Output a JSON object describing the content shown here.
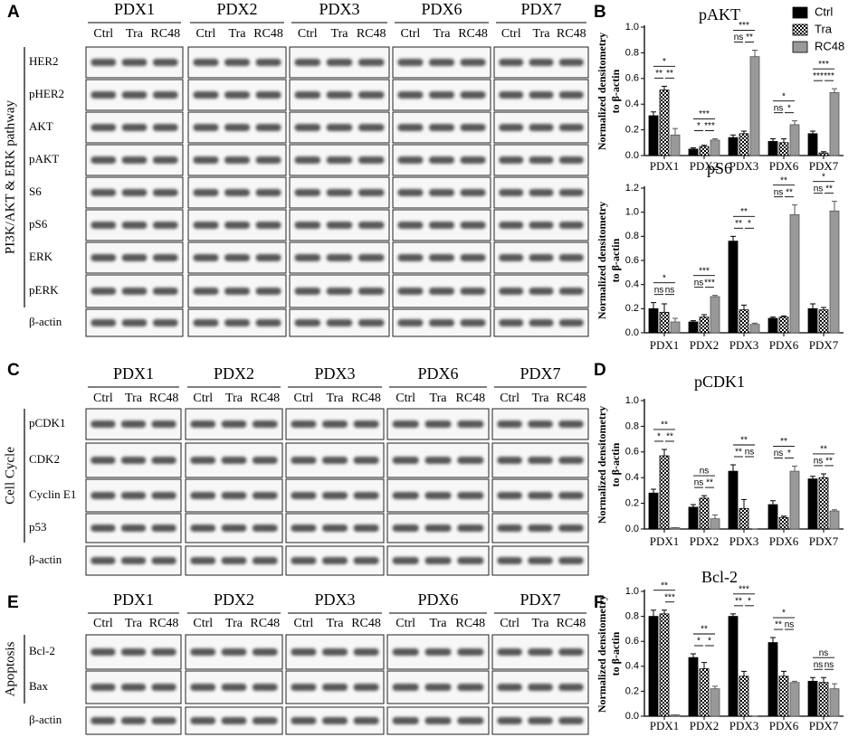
{
  "blots": [
    {
      "panel_label": "A",
      "side_label": "PI3K/AKT & ERK pathway",
      "groups": [
        "PDX1",
        "PDX2",
        "PDX3",
        "PDX6",
        "PDX7"
      ],
      "lanes": [
        "Ctrl",
        "Tra",
        "RC48"
      ],
      "rows": [
        "HER2",
        "pHER2",
        "AKT",
        "pAKT",
        "S6",
        "pS6",
        "ERK",
        "pERK",
        "β-actin"
      ]
    },
    {
      "panel_label": "C",
      "side_label": "Cell Cycle",
      "groups": [
        "PDX1",
        "PDX2",
        "PDX3",
        "PDX6",
        "PDX7"
      ],
      "lanes": [
        "Ctrl",
        "Tra",
        "RC48"
      ],
      "rows": [
        "pCDK1",
        "CDK2",
        "Cyclin E1",
        "p53",
        "β-actin"
      ]
    },
    {
      "panel_label": "E",
      "side_label": "Apoptosis",
      "groups": [
        "PDX1",
        "PDX2",
        "PDX3",
        "PDX6",
        "PDX7"
      ],
      "lanes": [
        "Ctrl",
        "Tra",
        "RC48"
      ],
      "rows": [
        "Bcl-2",
        "Bax",
        "β-actin"
      ]
    }
  ],
  "chart_data": [
    {
      "type": "bar",
      "panel_label": "B",
      "title": "pAKT",
      "ylabel": [
        "Normalized densitometry",
        "to β-actin"
      ],
      "categories": [
        "PDX1",
        "PDX2",
        "PDX3",
        "PDX6",
        "PDX7"
      ],
      "series": [
        {
          "name": "Ctrl",
          "color": "#000000",
          "values": [
            0.31,
            0.05,
            0.14,
            0.11,
            0.17
          ],
          "errors": [
            0.03,
            0.01,
            0.02,
            0.02,
            0.02
          ]
        },
        {
          "name": "Tra",
          "color": "#000000",
          "pattern": "checker",
          "values": [
            0.51,
            0.07,
            0.17,
            0.1,
            0.02
          ],
          "errors": [
            0.03,
            0.01,
            0.02,
            0.03,
            0.01
          ]
        },
        {
          "name": "RC48",
          "color": "#999999",
          "values": [
            0.16,
            0.12,
            0.77,
            0.24,
            0.49
          ],
          "errors": [
            0.05,
            0.01,
            0.05,
            0.03,
            0.03
          ]
        }
      ],
      "ylim": [
        0,
        1.0
      ],
      "yticks": [
        {
          "value": 0,
          "label": "0.0"
        },
        {
          "value": 0.2,
          "label": "0.2"
        },
        {
          "value": 0.4,
          "label": "0.4"
        },
        {
          "value": 0.6,
          "label": "0.6"
        },
        {
          "value": 0.8,
          "label": "0.8"
        },
        {
          "value": 1.0,
          "label": "1.0"
        }
      ],
      "legend": "upper right",
      "annotations": [
        {
          "category": "PDX1",
          "pair": [
            "Ctrl",
            "RC48"
          ],
          "text": "*"
        },
        {
          "category": "PDX1",
          "pair": [
            "Ctrl",
            "Tra"
          ],
          "text": "**"
        },
        {
          "category": "PDX1",
          "pair": [
            "Tra",
            "RC48"
          ],
          "text": "**"
        },
        {
          "category": "PDX2",
          "pair": [
            "Ctrl",
            "RC48"
          ],
          "text": "***"
        },
        {
          "category": "PDX2",
          "pair": [
            "Ctrl",
            "Tra"
          ],
          "text": "*"
        },
        {
          "category": "PDX2",
          "pair": [
            "Tra",
            "RC48"
          ],
          "text": "***"
        },
        {
          "category": "PDX3",
          "pair": [
            "Ctrl",
            "RC48"
          ],
          "text": "***"
        },
        {
          "category": "PDX3",
          "pair": [
            "Ctrl",
            "Tra"
          ],
          "text": "ns"
        },
        {
          "category": "PDX3",
          "pair": [
            "Tra",
            "RC48"
          ],
          "text": "**"
        },
        {
          "category": "PDX6",
          "pair": [
            "Ctrl",
            "RC48"
          ],
          "text": "*"
        },
        {
          "category": "PDX6",
          "pair": [
            "Ctrl",
            "Tra"
          ],
          "text": "ns"
        },
        {
          "category": "PDX6",
          "pair": [
            "Tra",
            "RC48"
          ],
          "text": "*"
        },
        {
          "category": "PDX7",
          "pair": [
            "Ctrl",
            "RC48"
          ],
          "text": "***"
        },
        {
          "category": "PDX7",
          "pair": [
            "Ctrl",
            "Tra"
          ],
          "text": "***"
        },
        {
          "category": "PDX7",
          "pair": [
            "Tra",
            "RC48"
          ],
          "text": "***"
        }
      ]
    },
    {
      "type": "bar",
      "title": "pS6",
      "ylabel": [
        "Normalized densitometry",
        "to β-actin"
      ],
      "categories": [
        "PDX1",
        "PDX2",
        "PDX3",
        "PDX6",
        "PDX7"
      ],
      "series": [
        {
          "name": "Ctrl",
          "color": "#000000",
          "values": [
            0.2,
            0.09,
            0.76,
            0.12,
            0.2
          ],
          "errors": [
            0.05,
            0.01,
            0.04,
            0.01,
            0.04
          ]
        },
        {
          "name": "Tra",
          "color": "#000000",
          "pattern": "checker",
          "values": [
            0.17,
            0.13,
            0.19,
            0.13,
            0.19
          ],
          "errors": [
            0.07,
            0.02,
            0.04,
            0.01,
            0.02
          ]
        },
        {
          "name": "RC48",
          "color": "#999999",
          "values": [
            0.09,
            0.3,
            0.07,
            0.98,
            1.01
          ],
          "errors": [
            0.03,
            0.01,
            0.01,
            0.08,
            0.08
          ]
        }
      ],
      "ylim": [
        0,
        1.2
      ],
      "yticks": [
        {
          "value": 0,
          "label": "0.0"
        },
        {
          "value": 0.2,
          "label": "0.2"
        },
        {
          "value": 0.4,
          "label": "0.4"
        },
        {
          "value": 0.6,
          "label": "0.6"
        },
        {
          "value": 0.8,
          "label": "0.8"
        },
        {
          "value": 1.0,
          "label": "1.0"
        },
        {
          "value": 1.2,
          "label": "1.2"
        }
      ],
      "annotations": [
        {
          "category": "PDX1",
          "pair": [
            "Ctrl",
            "RC48"
          ],
          "text": "*"
        },
        {
          "category": "PDX1",
          "pair": [
            "Ctrl",
            "Tra"
          ],
          "text": "ns"
        },
        {
          "category": "PDX1",
          "pair": [
            "Tra",
            "RC48"
          ],
          "text": "ns"
        },
        {
          "category": "PDX2",
          "pair": [
            "Ctrl",
            "RC48"
          ],
          "text": "***"
        },
        {
          "category": "PDX2",
          "pair": [
            "Ctrl",
            "Tra"
          ],
          "text": "ns"
        },
        {
          "category": "PDX2",
          "pair": [
            "Tra",
            "RC48"
          ],
          "text": "***"
        },
        {
          "category": "PDX3",
          "pair": [
            "Ctrl",
            "RC48"
          ],
          "text": "**"
        },
        {
          "category": "PDX3",
          "pair": [
            "Ctrl",
            "Tra"
          ],
          "text": "**"
        },
        {
          "category": "PDX3",
          "pair": [
            "Tra",
            "RC48"
          ],
          "text": "*"
        },
        {
          "category": "PDX6",
          "pair": [
            "Ctrl",
            "RC48"
          ],
          "text": "**"
        },
        {
          "category": "PDX6",
          "pair": [
            "Ctrl",
            "Tra"
          ],
          "text": "ns"
        },
        {
          "category": "PDX6",
          "pair": [
            "Tra",
            "RC48"
          ],
          "text": "**"
        },
        {
          "category": "PDX7",
          "pair": [
            "Ctrl",
            "RC48"
          ],
          "text": "*"
        },
        {
          "category": "PDX7",
          "pair": [
            "Ctrl",
            "Tra"
          ],
          "text": "ns"
        },
        {
          "category": "PDX7",
          "pair": [
            "Tra",
            "RC48"
          ],
          "text": "**"
        }
      ]
    },
    {
      "type": "bar",
      "panel_label": "D",
      "title": "pCDK1",
      "ylabel": [
        "Normalized densitometry",
        "to β-actin"
      ],
      "categories": [
        "PDX1",
        "PDX2",
        "PDX3",
        "PDX6",
        "PDX7"
      ],
      "series": [
        {
          "name": "Ctrl",
          "color": "#000000",
          "values": [
            0.28,
            0.17,
            0.45,
            0.19,
            0.39
          ],
          "errors": [
            0.03,
            0.02,
            0.05,
            0.03,
            0.02
          ]
        },
        {
          "name": "Tra",
          "color": "#000000",
          "pattern": "checker",
          "values": [
            0.57,
            0.24,
            0.16,
            0.09,
            0.4
          ],
          "errors": [
            0.05,
            0.02,
            0.07,
            0.01,
            0.03
          ]
        },
        {
          "name": "RC48",
          "color": "#999999",
          "values": [
            0.01,
            0.08,
            0.0,
            0.45,
            0.14
          ],
          "errors": [
            0.0,
            0.03,
            0.0,
            0.04,
            0.01
          ]
        }
      ],
      "ylim": [
        0,
        1.0
      ],
      "yticks": [
        {
          "value": 0,
          "label": "0.0"
        },
        {
          "value": 0.2,
          "label": "0.2"
        },
        {
          "value": 0.4,
          "label": "0.4"
        },
        {
          "value": 0.6,
          "label": "0.6"
        },
        {
          "value": 0.8,
          "label": "0.8"
        },
        {
          "value": 1.0,
          "label": "1.0"
        }
      ],
      "annotations": [
        {
          "category": "PDX1",
          "pair": [
            "Ctrl",
            "RC48"
          ],
          "text": "**"
        },
        {
          "category": "PDX1",
          "pair": [
            "Ctrl",
            "Tra"
          ],
          "text": "*"
        },
        {
          "category": "PDX1",
          "pair": [
            "Tra",
            "RC48"
          ],
          "text": "**"
        },
        {
          "category": "PDX2",
          "pair": [
            "Ctrl",
            "RC48"
          ],
          "text": "ns"
        },
        {
          "category": "PDX2",
          "pair": [
            "Ctrl",
            "Tra"
          ],
          "text": "ns"
        },
        {
          "category": "PDX2",
          "pair": [
            "Tra",
            "RC48"
          ],
          "text": "**"
        },
        {
          "category": "PDX3",
          "pair": [
            "Ctrl",
            "RC48"
          ],
          "text": "**"
        },
        {
          "category": "PDX3",
          "pair": [
            "Ctrl",
            "Tra"
          ],
          "text": "**"
        },
        {
          "category": "PDX3",
          "pair": [
            "Tra",
            "RC48"
          ],
          "text": "ns"
        },
        {
          "category": "PDX6",
          "pair": [
            "Ctrl",
            "RC48"
          ],
          "text": "**"
        },
        {
          "category": "PDX6",
          "pair": [
            "Ctrl",
            "Tra"
          ],
          "text": "ns"
        },
        {
          "category": "PDX6",
          "pair": [
            "Tra",
            "RC48"
          ],
          "text": "*"
        },
        {
          "category": "PDX7",
          "pair": [
            "Ctrl",
            "RC48"
          ],
          "text": "**"
        },
        {
          "category": "PDX7",
          "pair": [
            "Ctrl",
            "Tra"
          ],
          "text": "ns"
        },
        {
          "category": "PDX7",
          "pair": [
            "Tra",
            "RC48"
          ],
          "text": "**"
        }
      ]
    },
    {
      "type": "bar",
      "panel_label": "F",
      "title": "Bcl-2",
      "ylabel": [
        "Normalized densitometry",
        "to β-actin"
      ],
      "categories": [
        "PDX1",
        "PDX2",
        "PDX3",
        "PDX6",
        "PDX7"
      ],
      "series": [
        {
          "name": "Ctrl",
          "color": "#000000",
          "values": [
            0.8,
            0.47,
            0.8,
            0.59,
            0.28
          ],
          "errors": [
            0.05,
            0.03,
            0.02,
            0.04,
            0.03
          ]
        },
        {
          "name": "Tra",
          "color": "#000000",
          "pattern": "checker",
          "values": [
            0.82,
            0.38,
            0.32,
            0.32,
            0.27
          ],
          "errors": [
            0.03,
            0.05,
            0.04,
            0.04,
            0.04
          ]
        },
        {
          "name": "RC48",
          "color": "#999999",
          "values": [
            0.01,
            0.22,
            0.0,
            0.27,
            0.22
          ],
          "errors": [
            0.0,
            0.02,
            0.0,
            0.01,
            0.04
          ]
        }
      ],
      "ylim": [
        0,
        1.0
      ],
      "yticks": [
        {
          "value": 0,
          "label": "0.0"
        },
        {
          "value": 0.2,
          "label": "0.2"
        },
        {
          "value": 0.4,
          "label": "0.4"
        },
        {
          "value": 0.6,
          "label": "0.6"
        },
        {
          "value": 0.8,
          "label": "0.8"
        },
        {
          "value": 1.0,
          "label": "1.0"
        }
      ],
      "annotations": [
        {
          "category": "PDX1",
          "pair": [
            "Ctrl",
            "RC48"
          ],
          "text": "**"
        },
        {
          "category": "PDX1",
          "pair": [
            "Tra",
            "RC48"
          ],
          "text": "***"
        },
        {
          "category": "PDX2",
          "pair": [
            "Ctrl",
            "RC48"
          ],
          "text": "**"
        },
        {
          "category": "PDX2",
          "pair": [
            "Ctrl",
            "Tra"
          ],
          "text": "*"
        },
        {
          "category": "PDX2",
          "pair": [
            "Tra",
            "RC48"
          ],
          "text": "*"
        },
        {
          "category": "PDX3",
          "pair": [
            "Ctrl",
            "RC48"
          ],
          "text": "***"
        },
        {
          "category": "PDX3",
          "pair": [
            "Ctrl",
            "Tra"
          ],
          "text": "**"
        },
        {
          "category": "PDX3",
          "pair": [
            "Tra",
            "RC48"
          ],
          "text": "*"
        },
        {
          "category": "PDX6",
          "pair": [
            "Ctrl",
            "RC48"
          ],
          "text": "*"
        },
        {
          "category": "PDX6",
          "pair": [
            "Ctrl",
            "Tra"
          ],
          "text": "**"
        },
        {
          "category": "PDX6",
          "pair": [
            "Tra",
            "RC48"
          ],
          "text": "ns"
        },
        {
          "category": "PDX7",
          "pair": [
            "Ctrl",
            "RC48"
          ],
          "text": "ns"
        },
        {
          "category": "PDX7",
          "pair": [
            "Ctrl",
            "Tra"
          ],
          "text": "ns"
        },
        {
          "category": "PDX7",
          "pair": [
            "Tra",
            "RC48"
          ],
          "text": "ns"
        }
      ]
    }
  ]
}
